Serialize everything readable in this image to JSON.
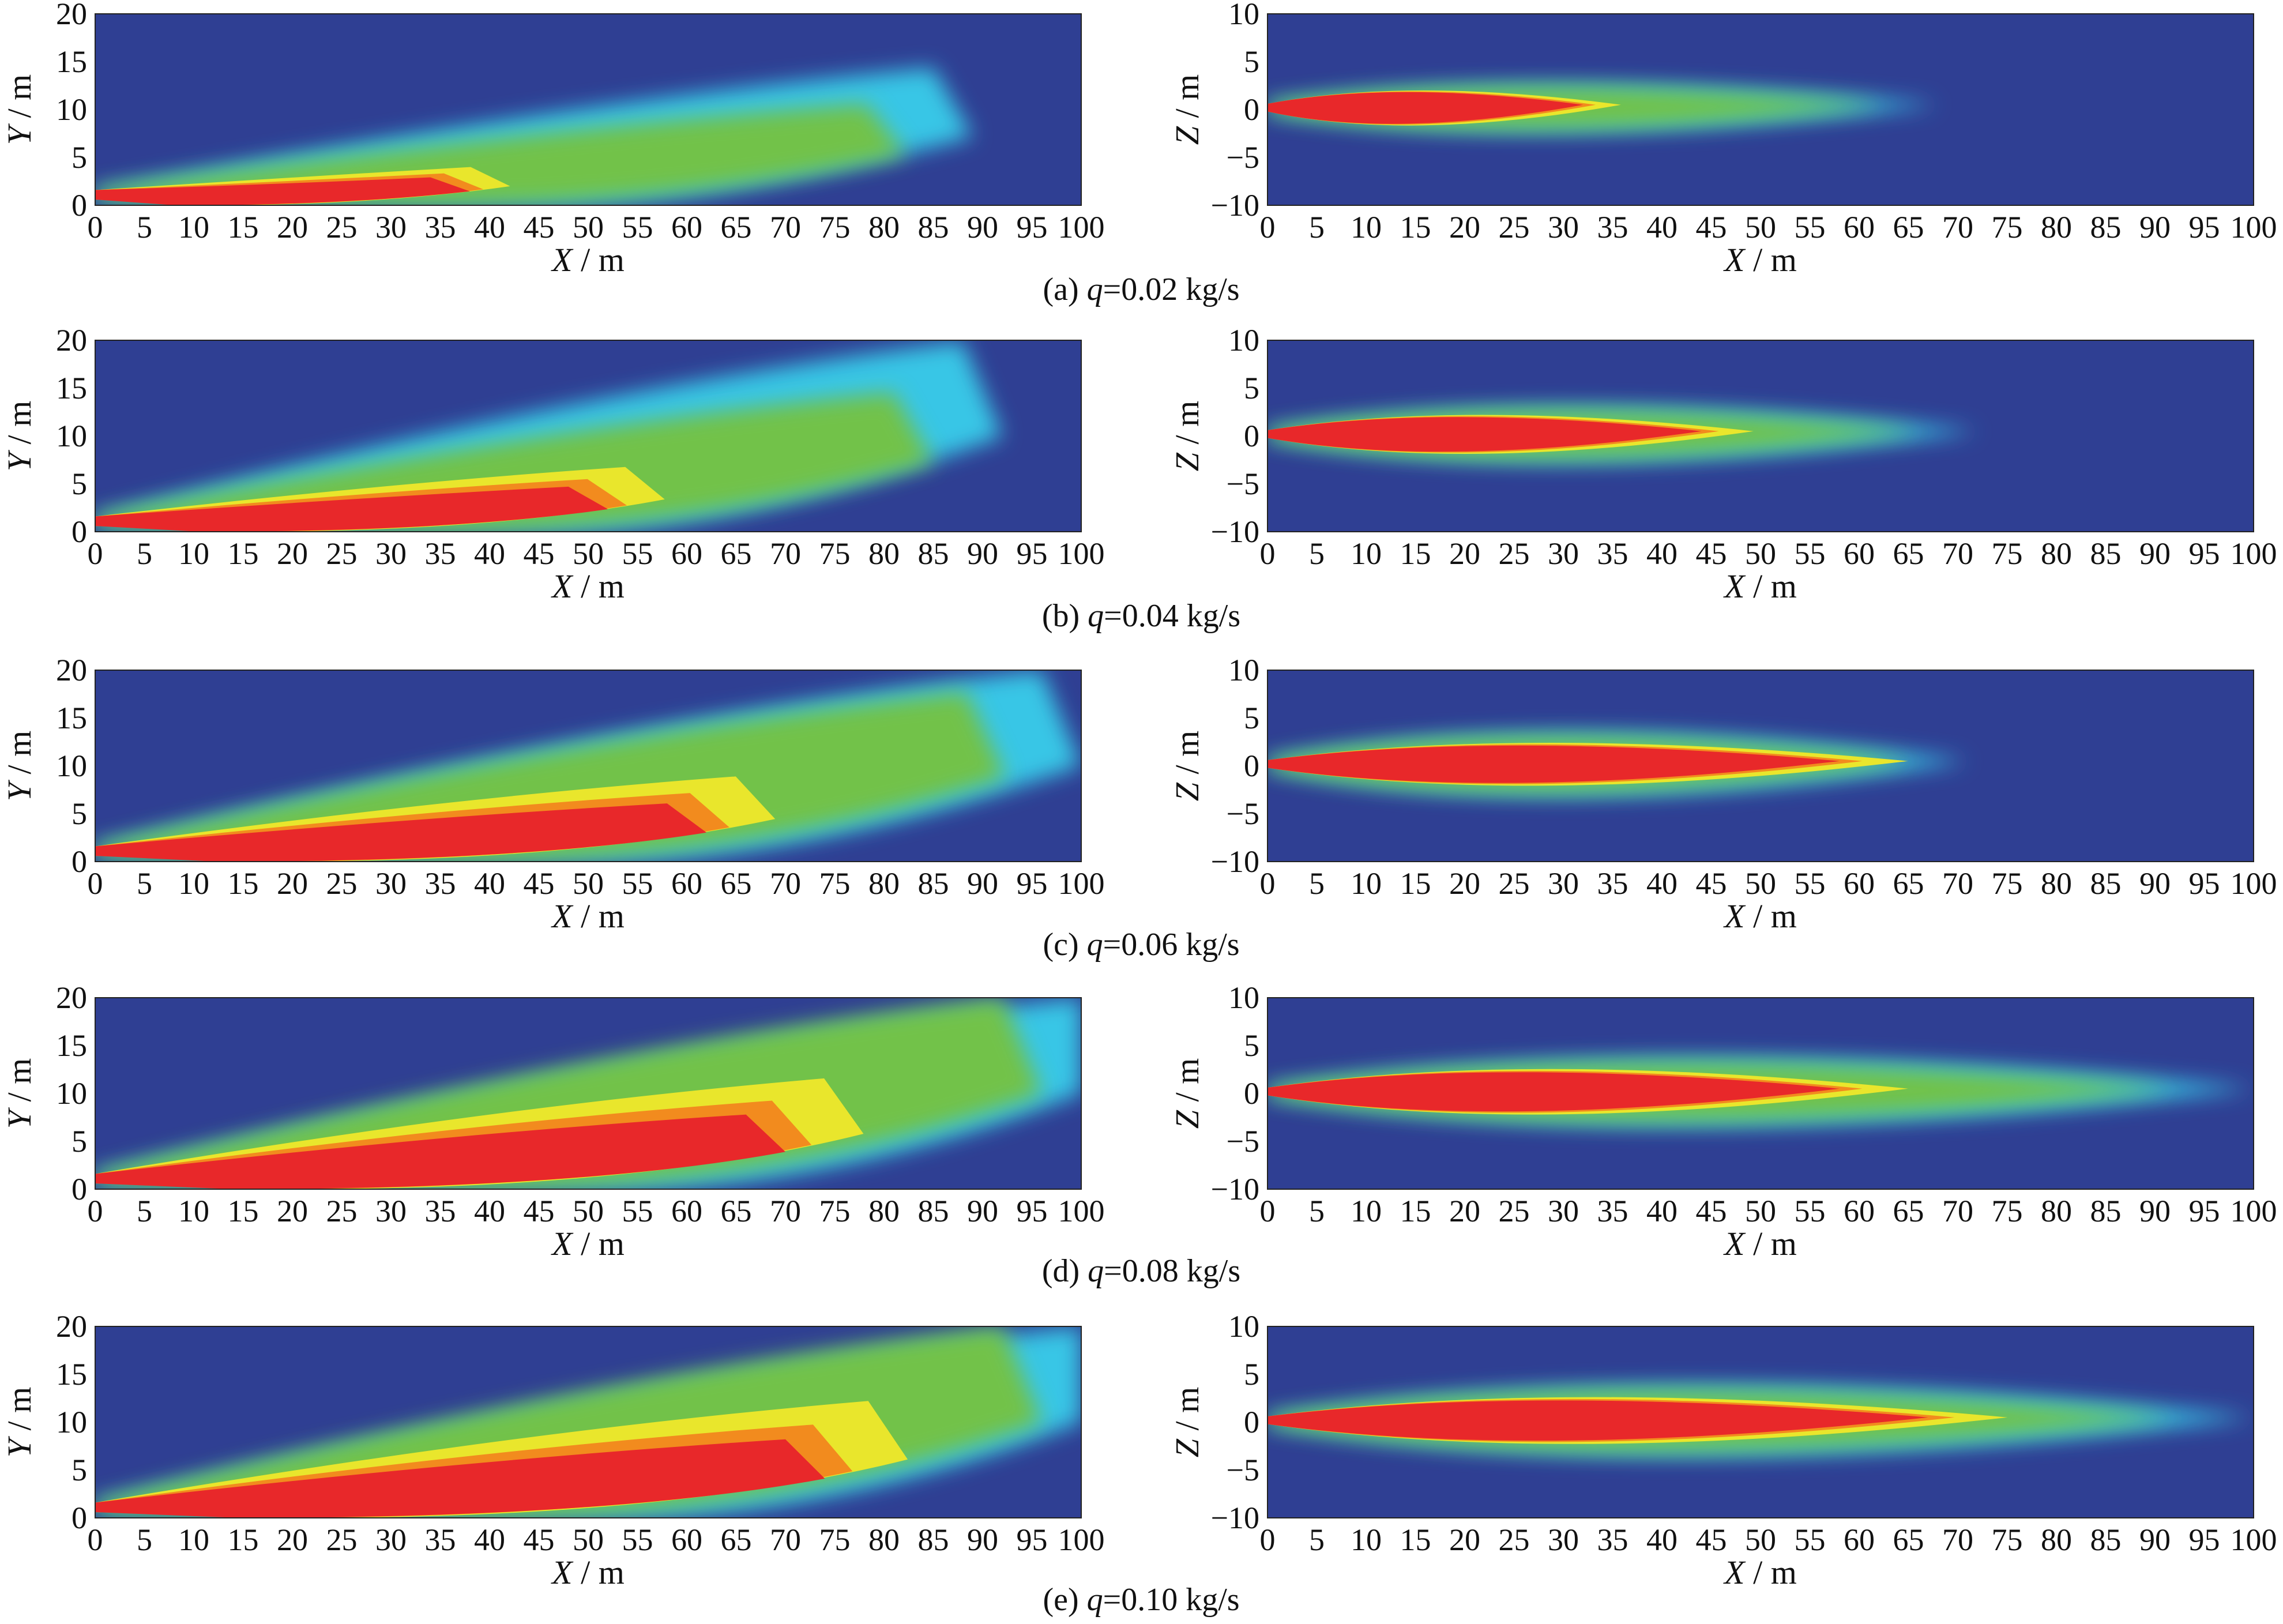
{
  "figure": {
    "colormap": [
      "#2f3f93",
      "#2a6fc4",
      "#38c6e6",
      "#72c24a",
      "#e9e62c",
      "#f28b1e",
      "#e8282a"
    ],
    "rows": [
      {
        "caption": {
          "prefix": "(a) ",
          "var": "q",
          "rest": "=0.02 kg/s"
        },
        "plume": {
          "length_m": 85,
          "core_end_m": 34,
          "spread": 0.55
        },
        "side": {
          "plume": {
            "length_m": 68,
            "core_end_m": 32,
            "spread": 0.45
          }
        }
      },
      {
        "caption": {
          "prefix": "(b) ",
          "var": "q",
          "rest": "=0.04 kg/s"
        },
        "plume": {
          "length_m": 88,
          "core_end_m": 48,
          "spread": 0.75
        },
        "side": {
          "plume": {
            "length_m": 72,
            "core_end_m": 44,
            "spread": 0.6
          }
        }
      },
      {
        "caption": {
          "prefix": "(c) ",
          "var": "q",
          "rest": "=0.06 kg/s"
        },
        "plume": {
          "length_m": 96,
          "core_end_m": 58,
          "spread": 0.85
        },
        "side": {
          "plume": {
            "length_m": 71,
            "core_end_m": 58,
            "spread": 0.75
          }
        }
      },
      {
        "caption": {
          "prefix": "(d) ",
          "var": "q",
          "rest": "=0.08 kg/s"
        },
        "plume": {
          "length_m": 100,
          "core_end_m": 66,
          "spread": 1.0
        },
        "side": {
          "plume": {
            "length_m": 100,
            "core_end_m": 58,
            "spread": 0.85
          }
        }
      },
      {
        "caption": {
          "prefix": "(e) ",
          "var": "q",
          "rest": "=0.10 kg/s"
        },
        "plume": {
          "length_m": 100,
          "core_end_m": 70,
          "spread": 1.0
        },
        "side": {
          "plume": {
            "length_m": 100,
            "core_end_m": 67,
            "spread": 0.9
          }
        }
      }
    ]
  },
  "chart_data": [
    {
      "type": "heatmap",
      "panel": "a-left",
      "xlabel_var": "X",
      "xlabel_unit": " / m",
      "ylabel_var": "Y",
      "ylabel_unit": " / m",
      "xlim": [
        0,
        100
      ],
      "ylim": [
        0,
        20
      ],
      "xticks": [
        "0",
        "5",
        "10",
        "15",
        "20",
        "25",
        "30",
        "35",
        "40",
        "45",
        "50",
        "55",
        "60",
        "65",
        "70",
        "75",
        "80",
        "85",
        "90",
        "95",
        "100"
      ],
      "yticks": [
        "0",
        "5",
        "10",
        "15",
        "20"
      ]
    },
    {
      "type": "heatmap",
      "panel": "a-right",
      "xlabel_var": "X",
      "xlabel_unit": " / m",
      "ylabel_var": "Z",
      "ylabel_unit": " / m",
      "xlim": [
        0,
        100
      ],
      "ylim": [
        -10,
        10
      ],
      "xticks": [
        "0",
        "5",
        "10",
        "15",
        "20",
        "25",
        "30",
        "35",
        "40",
        "45",
        "50",
        "55",
        "60",
        "65",
        "70",
        "75",
        "80",
        "85",
        "90",
        "95",
        "100"
      ],
      "yticks": [
        "−10",
        "−5",
        "0",
        "5",
        "10"
      ]
    },
    {
      "type": "heatmap",
      "panel": "b-left",
      "xlabel_var": "X",
      "xlabel_unit": " / m",
      "ylabel_var": "Y",
      "ylabel_unit": " / m",
      "xlim": [
        0,
        100
      ],
      "ylim": [
        0,
        20
      ],
      "xticks": [
        "0",
        "5",
        "10",
        "15",
        "20",
        "25",
        "30",
        "35",
        "40",
        "45",
        "50",
        "55",
        "60",
        "65",
        "70",
        "75",
        "80",
        "85",
        "90",
        "95",
        "100"
      ],
      "yticks": [
        "0",
        "5",
        "10",
        "15",
        "20"
      ]
    },
    {
      "type": "heatmap",
      "panel": "b-right",
      "xlabel_var": "X",
      "xlabel_unit": " / m",
      "ylabel_var": "Z",
      "ylabel_unit": " / m",
      "xlim": [
        0,
        100
      ],
      "ylim": [
        -10,
        10
      ],
      "xticks": [
        "0",
        "5",
        "10",
        "15",
        "20",
        "25",
        "30",
        "35",
        "40",
        "45",
        "50",
        "55",
        "60",
        "65",
        "70",
        "75",
        "80",
        "85",
        "90",
        "95",
        "100"
      ],
      "yticks": [
        "−10",
        "−5",
        "0",
        "5",
        "10"
      ]
    },
    {
      "type": "heatmap",
      "panel": "c-left",
      "xlabel_var": "X",
      "xlabel_unit": " / m",
      "ylabel_var": "Y",
      "ylabel_unit": " / m",
      "xlim": [
        0,
        100
      ],
      "ylim": [
        0,
        20
      ],
      "xticks": [
        "0",
        "5",
        "10",
        "15",
        "20",
        "25",
        "30",
        "35",
        "40",
        "45",
        "50",
        "55",
        "60",
        "65",
        "70",
        "75",
        "80",
        "85",
        "90",
        "95",
        "100"
      ],
      "yticks": [
        "0",
        "5",
        "10",
        "15",
        "20"
      ]
    },
    {
      "type": "heatmap",
      "panel": "c-right",
      "xlabel_var": "X",
      "xlabel_unit": " / m",
      "ylabel_var": "Z",
      "ylabel_unit": " / m",
      "xlim": [
        0,
        100
      ],
      "ylim": [
        -10,
        10
      ],
      "xticks": [
        "0",
        "5",
        "10",
        "15",
        "20",
        "25",
        "30",
        "35",
        "40",
        "45",
        "50",
        "55",
        "60",
        "65",
        "70",
        "75",
        "80",
        "85",
        "90",
        "95",
        "100"
      ],
      "yticks": [
        "−10",
        "−5",
        "0",
        "5",
        "10"
      ]
    },
    {
      "type": "heatmap",
      "panel": "d-left",
      "xlabel_var": "X",
      "xlabel_unit": " / m",
      "ylabel_var": "Y",
      "ylabel_unit": " / m",
      "xlim": [
        0,
        100
      ],
      "ylim": [
        0,
        20
      ],
      "xticks": [
        "0",
        "5",
        "10",
        "15",
        "20",
        "25",
        "30",
        "35",
        "40",
        "45",
        "50",
        "55",
        "60",
        "65",
        "70",
        "75",
        "80",
        "85",
        "90",
        "95",
        "100"
      ],
      "yticks": [
        "0",
        "5",
        "10",
        "15",
        "20"
      ]
    },
    {
      "type": "heatmap",
      "panel": "d-right",
      "xlabel_var": "X",
      "xlabel_unit": " / m",
      "ylabel_var": "Z",
      "ylabel_unit": " / m",
      "xlim": [
        0,
        100
      ],
      "ylim": [
        -10,
        10
      ],
      "xticks": [
        "0",
        "5",
        "10",
        "15",
        "20",
        "25",
        "30",
        "35",
        "40",
        "45",
        "50",
        "55",
        "60",
        "65",
        "70",
        "75",
        "80",
        "85",
        "90",
        "95",
        "100"
      ],
      "yticks": [
        "−10",
        "−5",
        "0",
        "5",
        "10"
      ]
    },
    {
      "type": "heatmap",
      "panel": "e-left",
      "xlabel_var": "X",
      "xlabel_unit": " / m",
      "ylabel_var": "Y",
      "ylabel_unit": " / m",
      "xlim": [
        0,
        100
      ],
      "ylim": [
        0,
        20
      ],
      "xticks": [
        "0",
        "5",
        "10",
        "15",
        "20",
        "25",
        "30",
        "35",
        "40",
        "45",
        "50",
        "55",
        "60",
        "65",
        "70",
        "75",
        "80",
        "85",
        "90",
        "95",
        "100"
      ],
      "yticks": [
        "0",
        "5",
        "10",
        "15",
        "20"
      ]
    },
    {
      "type": "heatmap",
      "panel": "e-right",
      "xlabel_var": "X",
      "xlabel_unit": " / m",
      "ylabel_var": "Z",
      "ylabel_unit": " / m",
      "xlim": [
        0,
        100
      ],
      "ylim": [
        -10,
        10
      ],
      "xticks": [
        "0",
        "5",
        "10",
        "15",
        "20",
        "25",
        "30",
        "35",
        "40",
        "45",
        "50",
        "55",
        "60",
        "65",
        "70",
        "75",
        "80",
        "85",
        "90",
        "95",
        "100"
      ],
      "yticks": [
        "−10",
        "−5",
        "0",
        "5",
        "10"
      ]
    }
  ]
}
